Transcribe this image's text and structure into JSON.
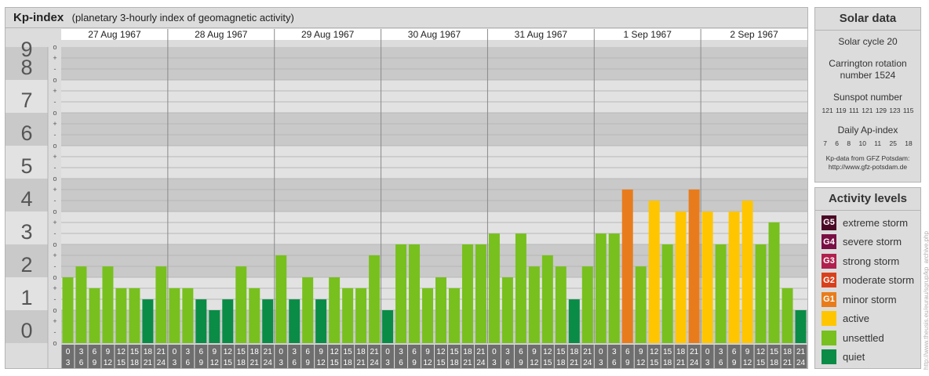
{
  "header": {
    "title": "Kp-index",
    "subtitle": "(planetary 3-hourly index of geomagnetic activity)"
  },
  "chart_data": {
    "type": "bar",
    "ylim": [
      0,
      9
    ],
    "y_major_ticks": [
      "0",
      "1",
      "2",
      "3",
      "4",
      "5",
      "6",
      "7",
      "8",
      "9"
    ],
    "y_minor_ticks": [
      "-",
      "o",
      "+"
    ],
    "days": [
      "27 Aug 1967",
      "28 Aug 1967",
      "29 Aug 1967",
      "30 Aug 1967",
      "31 Aug 1967",
      "1 Sep 1967",
      "2 Sep 1967"
    ],
    "interval_labels": [
      [
        "0",
        "3"
      ],
      [
        "3",
        "6"
      ],
      [
        "6",
        "9"
      ],
      [
        "9",
        "12"
      ],
      [
        "12",
        "15"
      ],
      [
        "15",
        "18"
      ],
      [
        "18",
        "21"
      ],
      [
        "21",
        "24"
      ]
    ],
    "values": [
      2.0,
      2.33,
      1.67,
      2.33,
      1.67,
      1.67,
      1.33,
      2.33,
      1.67,
      1.67,
      1.33,
      1.0,
      1.33,
      2.33,
      1.67,
      1.33,
      2.67,
      1.33,
      2.0,
      1.33,
      2.0,
      1.67,
      1.67,
      2.67,
      1.0,
      3.0,
      3.0,
      1.67,
      2.0,
      1.67,
      3.0,
      3.0,
      3.33,
      2.0,
      3.33,
      2.33,
      2.67,
      2.33,
      1.33,
      2.33,
      3.33,
      3.33,
      4.67,
      2.33,
      4.33,
      3.0,
      4.0,
      4.67,
      4.0,
      3.0,
      4.0,
      4.33,
      3.0,
      3.67,
      1.67,
      1.0
    ],
    "level_colors": {
      "quiet": "#0a8c46",
      "unsettled": "#78c01e",
      "active": "#ffc600",
      "minor": "#e87c1c"
    }
  },
  "solar": {
    "title": "Solar data",
    "cycle": "Solar cycle 20",
    "carrington_1": "Carrington rotation",
    "carrington_2": "number 1524",
    "sunspot_label": "Sunspot number",
    "sunspot_values": "121 119 111 121 129 123 115",
    "ap_label": "Daily Ap-index",
    "ap_values": "7 6 8 10 11 25 18",
    "source_1": "Kp-data from GFZ Potsdam:",
    "source_2": "http://www.gfz-potsdam.de"
  },
  "activity": {
    "title": "Activity levels",
    "levels": [
      {
        "badge": "G5",
        "label": "extreme storm",
        "color": "#4a0a26"
      },
      {
        "badge": "G4",
        "label": "severe storm",
        "color": "#7a0f44"
      },
      {
        "badge": "G3",
        "label": "strong storm",
        "color": "#b0204e"
      },
      {
        "badge": "G2",
        "label": "moderate storm",
        "color": "#d8401c"
      },
      {
        "badge": "G1",
        "label": "minor storm",
        "color": "#e87c1c"
      },
      {
        "badge": "",
        "label": "active",
        "color": "#ffc600"
      },
      {
        "badge": "",
        "label": "unsettled",
        "color": "#78c01e"
      },
      {
        "badge": "",
        "label": "quiet",
        "color": "#0a8c46"
      }
    ]
  },
  "watermark": "http://www.theusis.eu/eurau/sgrup/kp_archive.php"
}
